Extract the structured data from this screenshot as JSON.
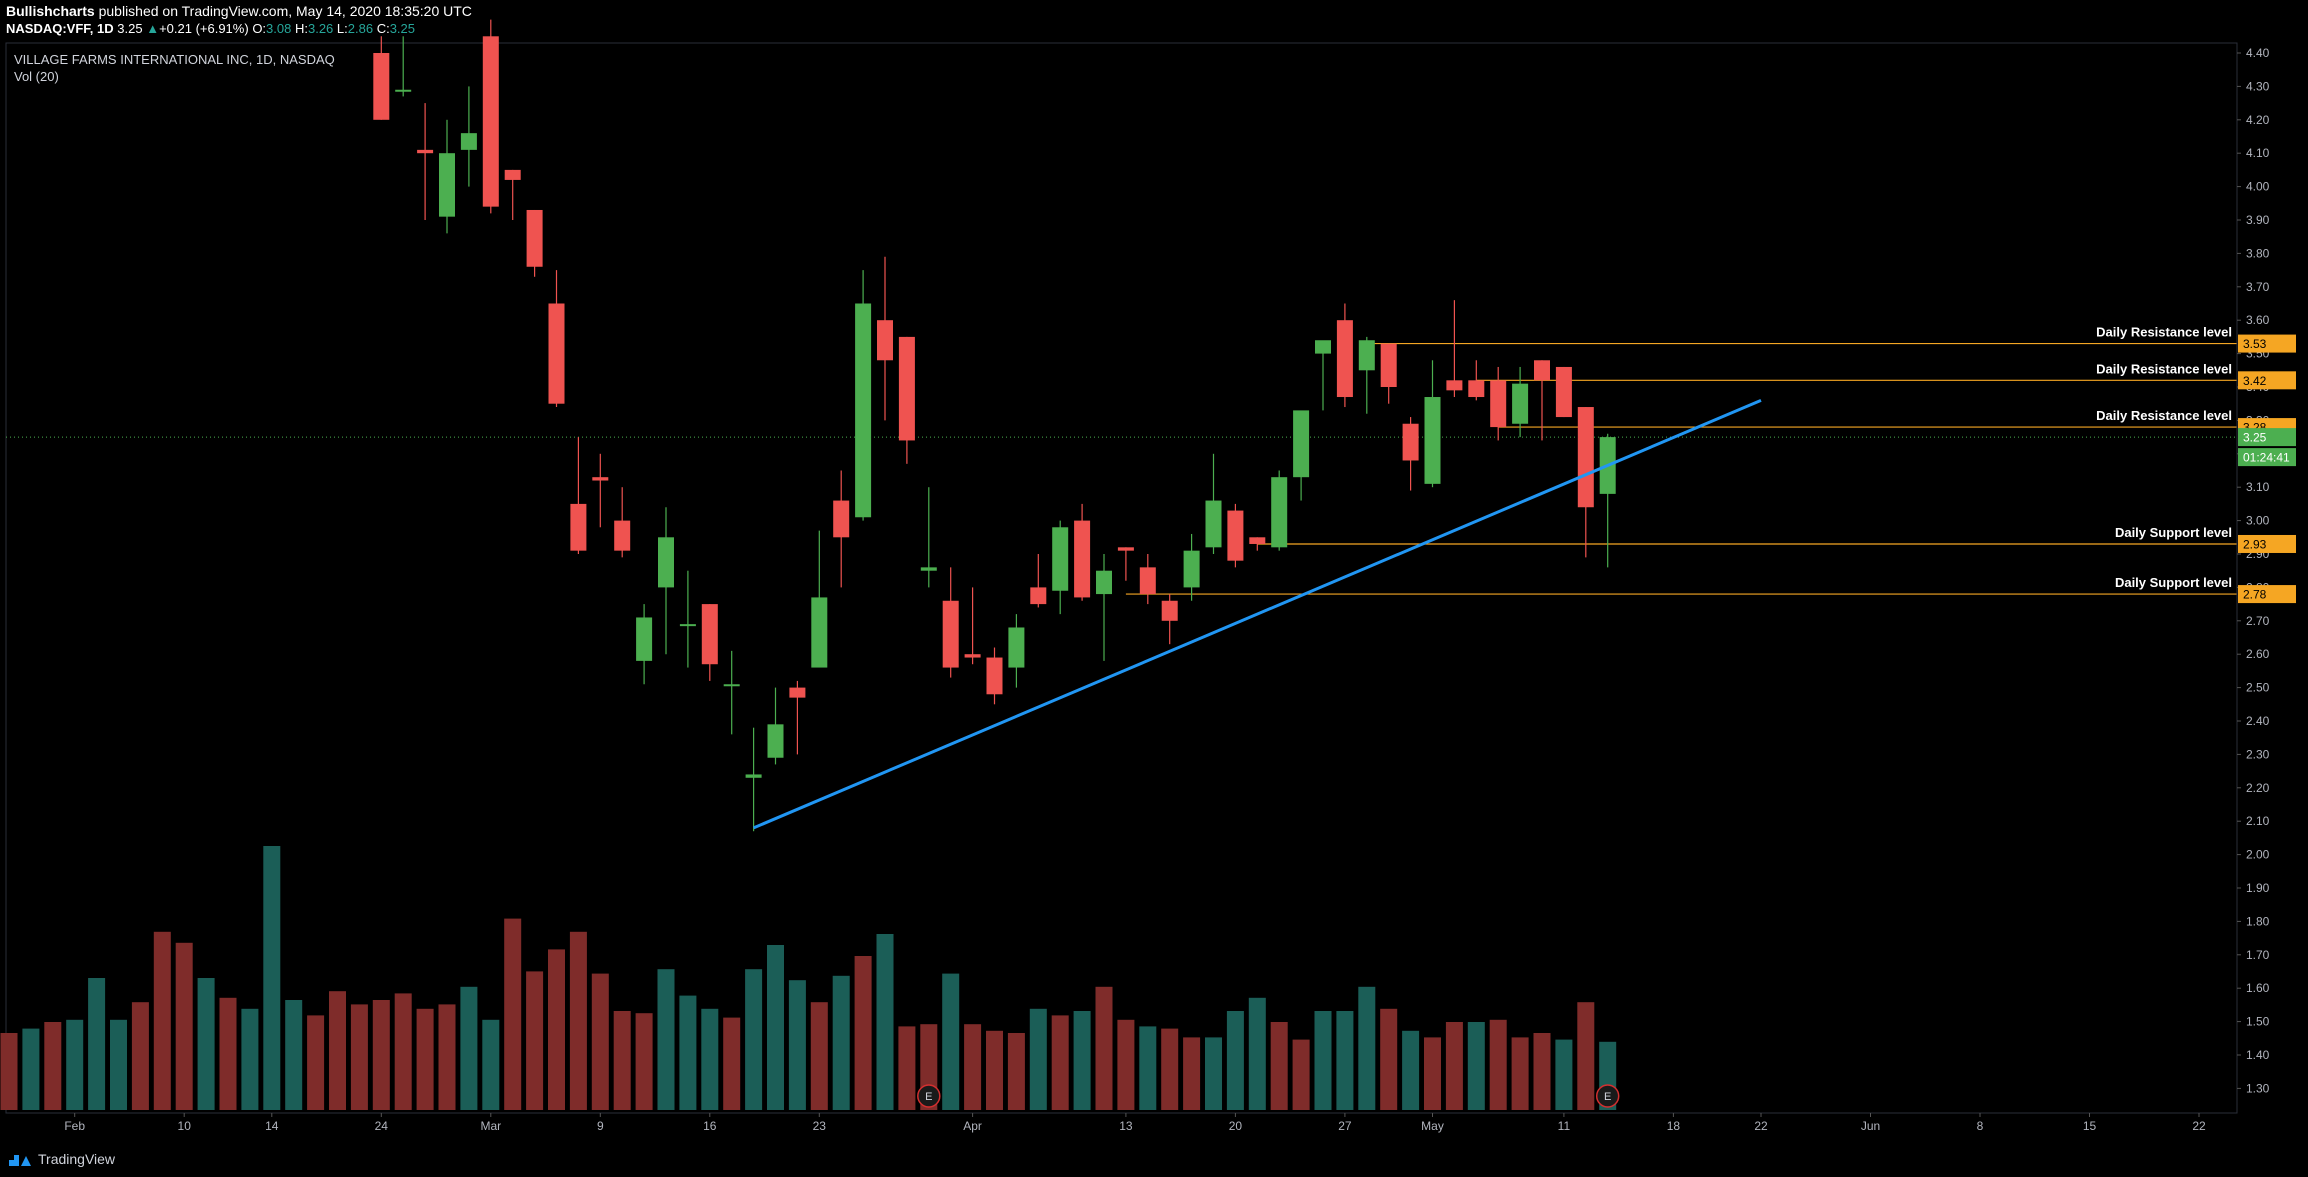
{
  "header": {
    "author": "Bullishcharts",
    "published_text": "published on TradingView.com, May 14, 2020 18:35:20 UTC",
    "symbol": "NASDAQ:VFF, 1D",
    "last": "3.25",
    "change_arrow": "▲",
    "change": "+0.21 (+6.91%)",
    "o_label": "O:",
    "o_val": "3.08",
    "h_label": "H:",
    "h_val": "3.26",
    "l_label": "L:",
    "l_val": "2.86",
    "c_label": "C:",
    "c_val": "3.25"
  },
  "pane": {
    "title": "VILLAGE FARMS INTERNATIONAL INC, 1D, NASDAQ",
    "volume_label": "Vol (20)"
  },
  "footer": {
    "brand": "TradingView"
  },
  "colors": {
    "up": "#4caf50",
    "down": "#ef5350",
    "vol_up": "#1b5e57",
    "vol_down": "#7f2c2a",
    "trendline": "#2196f3",
    "level": "#f5a623",
    "price_tag": "#4caf50",
    "grid": "#1e222d",
    "background": "#000000"
  },
  "chart_data": {
    "type": "candlestick",
    "title": "VILLAGE FARMS INTERNATIONAL INC, 1D, NASDAQ",
    "ylim": [
      1.25,
      4.42
    ],
    "y_ticks": [
      1.3,
      1.4,
      1.5,
      1.6,
      1.7,
      1.8,
      1.9,
      2.0,
      2.1,
      2.2,
      2.3,
      2.4,
      2.5,
      2.6,
      2.7,
      2.8,
      2.9,
      3.0,
      3.1,
      3.2,
      3.3,
      3.4,
      3.5,
      3.6,
      3.7,
      3.8,
      3.9,
      4.0,
      4.1,
      4.2,
      4.3,
      4.4
    ],
    "x_ticks": [
      {
        "label": "Feb",
        "i": 3
      },
      {
        "label": "10",
        "i": 8
      },
      {
        "label": "14",
        "i": 12
      },
      {
        "label": "24",
        "i": 17
      },
      {
        "label": "Mar",
        "i": 22
      },
      {
        "label": "9",
        "i": 27
      },
      {
        "label": "16",
        "i": 32
      },
      {
        "label": "23",
        "i": 37
      },
      {
        "label": "Apr",
        "i": 44
      },
      {
        "label": "13",
        "i": 51
      },
      {
        "label": "20",
        "i": 56
      },
      {
        "label": "27",
        "i": 61
      },
      {
        "label": "May",
        "i": 65
      },
      {
        "label": "11",
        "i": 71
      },
      {
        "label": "18",
        "i": 76
      },
      {
        "label": "22",
        "i": 80
      },
      {
        "label": "Jun",
        "i": 85
      },
      {
        "label": "8",
        "i": 90
      },
      {
        "label": "15",
        "i": 95
      },
      {
        "label": "22",
        "i": 100
      }
    ],
    "candles": [
      {
        "i": 17,
        "o": 4.4,
        "h": 4.45,
        "l": 4.2,
        "c": 4.2
      },
      {
        "i": 18,
        "o": 4.29,
        "h": 4.45,
        "l": 4.27,
        "c": 4.29
      },
      {
        "i": 19,
        "o": 4.11,
        "h": 4.25,
        "l": 3.9,
        "c": 4.1
      },
      {
        "i": 20,
        "o": 3.91,
        "h": 4.2,
        "l": 3.86,
        "c": 4.1
      },
      {
        "i": 21,
        "o": 4.11,
        "h": 4.3,
        "l": 4.0,
        "c": 4.16
      },
      {
        "i": 22,
        "o": 4.45,
        "h": 4.5,
        "l": 3.92,
        "c": 3.94
      },
      {
        "i": 23,
        "o": 4.05,
        "h": 4.05,
        "l": 3.9,
        "c": 4.02
      },
      {
        "i": 24,
        "o": 3.93,
        "h": 3.93,
        "l": 3.73,
        "c": 3.76
      },
      {
        "i": 25,
        "o": 3.65,
        "h": 3.75,
        "l": 3.34,
        "c": 3.35
      },
      {
        "i": 26,
        "o": 3.05,
        "h": 3.25,
        "l": 2.9,
        "c": 2.91
      },
      {
        "i": 27,
        "o": 3.13,
        "h": 3.2,
        "l": 2.98,
        "c": 3.12
      },
      {
        "i": 28,
        "o": 3.0,
        "h": 3.1,
        "l": 2.89,
        "c": 2.91
      },
      {
        "i": 29,
        "o": 2.58,
        "h": 2.75,
        "l": 2.51,
        "c": 2.71
      },
      {
        "i": 30,
        "o": 2.8,
        "h": 3.04,
        "l": 2.6,
        "c": 2.95
      },
      {
        "i": 31,
        "o": 2.69,
        "h": 2.85,
        "l": 2.56,
        "c": 2.69
      },
      {
        "i": 32,
        "o": 2.75,
        "h": 2.75,
        "l": 2.52,
        "c": 2.57
      },
      {
        "i": 33,
        "o": 2.51,
        "h": 2.61,
        "l": 2.36,
        "c": 2.51
      },
      {
        "i": 34,
        "o": 2.23,
        "h": 2.38,
        "l": 2.07,
        "c": 2.24
      },
      {
        "i": 35,
        "o": 2.29,
        "h": 2.5,
        "l": 2.27,
        "c": 2.39
      },
      {
        "i": 36,
        "o": 2.5,
        "h": 2.52,
        "l": 2.3,
        "c": 2.47
      },
      {
        "i": 37,
        "o": 2.56,
        "h": 2.97,
        "l": 2.56,
        "c": 2.77
      },
      {
        "i": 38,
        "o": 3.06,
        "h": 3.15,
        "l": 2.8,
        "c": 2.95
      },
      {
        "i": 39,
        "o": 3.01,
        "h": 3.75,
        "l": 3.0,
        "c": 3.65
      },
      {
        "i": 40,
        "o": 3.6,
        "h": 3.79,
        "l": 3.3,
        "c": 3.48
      },
      {
        "i": 41,
        "o": 3.55,
        "h": 3.55,
        "l": 3.17,
        "c": 3.24
      },
      {
        "i": 42,
        "o": 2.85,
        "h": 3.1,
        "l": 2.8,
        "c": 2.86
      },
      {
        "i": 43,
        "o": 2.76,
        "h": 2.86,
        "l": 2.53,
        "c": 2.56
      },
      {
        "i": 44,
        "o": 2.6,
        "h": 2.8,
        "l": 2.57,
        "c": 2.59
      },
      {
        "i": 45,
        "o": 2.59,
        "h": 2.62,
        "l": 2.45,
        "c": 2.48
      },
      {
        "i": 46,
        "o": 2.56,
        "h": 2.72,
        "l": 2.5,
        "c": 2.68
      },
      {
        "i": 47,
        "o": 2.8,
        "h": 2.9,
        "l": 2.74,
        "c": 2.75
      },
      {
        "i": 48,
        "o": 2.79,
        "h": 3.0,
        "l": 2.72,
        "c": 2.98
      },
      {
        "i": 49,
        "o": 3.0,
        "h": 3.05,
        "l": 2.76,
        "c": 2.77
      },
      {
        "i": 50,
        "o": 2.78,
        "h": 2.9,
        "l": 2.58,
        "c": 2.85
      },
      {
        "i": 51,
        "o": 2.92,
        "h": 2.92,
        "l": 2.82,
        "c": 2.91
      },
      {
        "i": 52,
        "o": 2.86,
        "h": 2.9,
        "l": 2.75,
        "c": 2.78
      },
      {
        "i": 53,
        "o": 2.76,
        "h": 2.78,
        "l": 2.63,
        "c": 2.7
      },
      {
        "i": 54,
        "o": 2.8,
        "h": 2.96,
        "l": 2.76,
        "c": 2.91
      },
      {
        "i": 55,
        "o": 2.92,
        "h": 3.2,
        "l": 2.9,
        "c": 3.06
      },
      {
        "i": 56,
        "o": 3.03,
        "h": 3.05,
        "l": 2.86,
        "c": 2.88
      },
      {
        "i": 57,
        "o": 2.95,
        "h": 2.95,
        "l": 2.91,
        "c": 2.93
      },
      {
        "i": 58,
        "o": 2.92,
        "h": 3.15,
        "l": 2.91,
        "c": 3.13
      },
      {
        "i": 59,
        "o": 3.13,
        "h": 3.32,
        "l": 3.06,
        "c": 3.33
      },
      {
        "i": 60,
        "o": 3.5,
        "h": 3.53,
        "l": 3.33,
        "c": 3.54
      },
      {
        "i": 61,
        "o": 3.6,
        "h": 3.65,
        "l": 3.34,
        "c": 3.37
      },
      {
        "i": 62,
        "o": 3.45,
        "h": 3.55,
        "l": 3.32,
        "c": 3.54
      },
      {
        "i": 63,
        "o": 3.53,
        "h": 3.53,
        "l": 3.35,
        "c": 3.4
      },
      {
        "i": 64,
        "o": 3.29,
        "h": 3.31,
        "l": 3.09,
        "c": 3.18
      },
      {
        "i": 65,
        "o": 3.11,
        "h": 3.48,
        "l": 3.1,
        "c": 3.37
      },
      {
        "i": 66,
        "o": 3.42,
        "h": 3.66,
        "l": 3.37,
        "c": 3.39
      },
      {
        "i": 67,
        "o": 3.42,
        "h": 3.48,
        "l": 3.36,
        "c": 3.37
      },
      {
        "i": 68,
        "o": 3.42,
        "h": 3.46,
        "l": 3.24,
        "c": 3.28
      },
      {
        "i": 69,
        "o": 3.29,
        "h": 3.46,
        "l": 3.25,
        "c": 3.41
      },
      {
        "i": 70,
        "o": 3.48,
        "h": 3.48,
        "l": 3.24,
        "c": 3.42
      },
      {
        "i": 71,
        "o": 3.46,
        "h": 3.46,
        "l": 3.31,
        "c": 3.31
      },
      {
        "i": 72,
        "o": 3.34,
        "h": 3.34,
        "l": 2.89,
        "c": 3.04
      },
      {
        "i": 73,
        "o": 3.08,
        "h": 3.26,
        "l": 2.86,
        "c": 3.25
      }
    ],
    "volume": [
      {
        "i": 0,
        "v": 0.35,
        "up": false
      },
      {
        "i": 1,
        "v": 0.37,
        "up": true
      },
      {
        "i": 2,
        "v": 0.4,
        "up": false
      },
      {
        "i": 3,
        "v": 0.41,
        "up": true
      },
      {
        "i": 4,
        "v": 0.6,
        "up": true
      },
      {
        "i": 5,
        "v": 0.41,
        "up": true
      },
      {
        "i": 6,
        "v": 0.49,
        "up": false
      },
      {
        "i": 7,
        "v": 0.81,
        "up": false
      },
      {
        "i": 8,
        "v": 0.76,
        "up": false
      },
      {
        "i": 9,
        "v": 0.6,
        "up": true
      },
      {
        "i": 10,
        "v": 0.51,
        "up": false
      },
      {
        "i": 11,
        "v": 0.46,
        "up": true
      },
      {
        "i": 12,
        "v": 1.2,
        "up": true
      },
      {
        "i": 13,
        "v": 0.5,
        "up": true
      },
      {
        "i": 14,
        "v": 0.43,
        "up": false
      },
      {
        "i": 15,
        "v": 0.54,
        "up": false
      },
      {
        "i": 16,
        "v": 0.48,
        "up": false
      },
      {
        "i": 17,
        "v": 0.5,
        "up": false
      },
      {
        "i": 18,
        "v": 0.53,
        "up": false
      },
      {
        "i": 19,
        "v": 0.46,
        "up": false
      },
      {
        "i": 20,
        "v": 0.48,
        "up": false
      },
      {
        "i": 21,
        "v": 0.56,
        "up": true
      },
      {
        "i": 22,
        "v": 0.41,
        "up": true
      },
      {
        "i": 23,
        "v": 0.87,
        "up": false
      },
      {
        "i": 24,
        "v": 0.63,
        "up": false
      },
      {
        "i": 25,
        "v": 0.73,
        "up": false
      },
      {
        "i": 26,
        "v": 0.81,
        "up": false
      },
      {
        "i": 27,
        "v": 0.62,
        "up": false
      },
      {
        "i": 28,
        "v": 0.45,
        "up": false
      },
      {
        "i": 29,
        "v": 0.44,
        "up": false
      },
      {
        "i": 30,
        "v": 0.64,
        "up": true
      },
      {
        "i": 31,
        "v": 0.52,
        "up": true
      },
      {
        "i": 32,
        "v": 0.46,
        "up": true
      },
      {
        "i": 33,
        "v": 0.42,
        "up": false
      },
      {
        "i": 34,
        "v": 0.64,
        "up": true
      },
      {
        "i": 35,
        "v": 0.75,
        "up": true
      },
      {
        "i": 36,
        "v": 0.59,
        "up": true
      },
      {
        "i": 37,
        "v": 0.49,
        "up": false
      },
      {
        "i": 38,
        "v": 0.61,
        "up": true
      },
      {
        "i": 39,
        "v": 0.7,
        "up": false
      },
      {
        "i": 40,
        "v": 0.8,
        "up": true
      },
      {
        "i": 41,
        "v": 0.38,
        "up": false
      },
      {
        "i": 42,
        "v": 0.39,
        "up": false
      },
      {
        "i": 43,
        "v": 0.62,
        "up": true
      },
      {
        "i": 44,
        "v": 0.39,
        "up": false
      },
      {
        "i": 45,
        "v": 0.36,
        "up": false
      },
      {
        "i": 46,
        "v": 0.35,
        "up": false
      },
      {
        "i": 47,
        "v": 0.46,
        "up": true
      },
      {
        "i": 48,
        "v": 0.43,
        "up": false
      },
      {
        "i": 49,
        "v": 0.45,
        "up": true
      },
      {
        "i": 50,
        "v": 0.56,
        "up": false
      },
      {
        "i": 51,
        "v": 0.41,
        "up": false
      },
      {
        "i": 52,
        "v": 0.38,
        "up": true
      },
      {
        "i": 53,
        "v": 0.37,
        "up": false
      },
      {
        "i": 54,
        "v": 0.33,
        "up": false
      },
      {
        "i": 55,
        "v": 0.33,
        "up": true
      },
      {
        "i": 56,
        "v": 0.45,
        "up": true
      },
      {
        "i": 57,
        "v": 0.51,
        "up": true
      },
      {
        "i": 58,
        "v": 0.4,
        "up": false
      },
      {
        "i": 59,
        "v": 0.32,
        "up": false
      },
      {
        "i": 60,
        "v": 0.45,
        "up": true
      },
      {
        "i": 61,
        "v": 0.45,
        "up": true
      },
      {
        "i": 62,
        "v": 0.56,
        "up": true
      },
      {
        "i": 63,
        "v": 0.46,
        "up": false
      },
      {
        "i": 64,
        "v": 0.36,
        "up": true
      },
      {
        "i": 65,
        "v": 0.33,
        "up": false
      },
      {
        "i": 66,
        "v": 0.4,
        "up": false
      },
      {
        "i": 67,
        "v": 0.4,
        "up": true
      },
      {
        "i": 68,
        "v": 0.41,
        "up": false
      },
      {
        "i": 69,
        "v": 0.33,
        "up": false
      },
      {
        "i": 70,
        "v": 0.35,
        "up": false
      },
      {
        "i": 71,
        "v": 0.32,
        "up": true
      },
      {
        "i": 72,
        "v": 0.49,
        "up": false
      },
      {
        "i": 73,
        "v": 0.31,
        "up": true
      }
    ],
    "earnings_markers": [
      {
        "i": 42,
        "label": "E"
      },
      {
        "i": 73,
        "label": "E"
      }
    ],
    "trendline": {
      "from": {
        "i": 34,
        "price": 2.08
      },
      "to": {
        "i": 80,
        "price": 3.36
      }
    },
    "levels": [
      {
        "label": "Daily Resistance level",
        "price": 3.53,
        "tag": "3.53",
        "start_i": 62
      },
      {
        "label": "Daily Resistance level",
        "price": 3.42,
        "tag": "3.42",
        "start_i": 67
      },
      {
        "label": "Daily Resistance level",
        "price": 3.28,
        "tag": "3.28",
        "start_i": 68
      },
      {
        "label": "Daily Support level",
        "price": 2.93,
        "tag": "2.93",
        "start_i": 57
      },
      {
        "label": "Daily Support level",
        "price": 2.78,
        "tag": "2.78",
        "start_i": 51
      }
    ],
    "last_price": {
      "price": 3.25,
      "tag": "3.25",
      "timer": "01:24:41"
    }
  }
}
